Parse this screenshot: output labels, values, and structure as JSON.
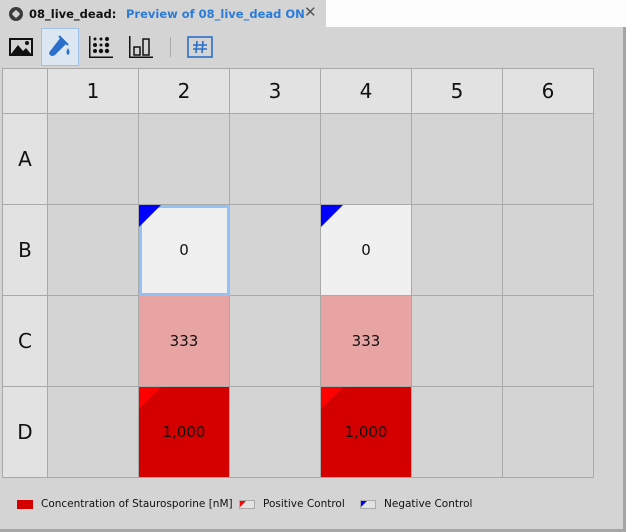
{
  "tab": {
    "title": "08_live_dead:",
    "subtitle": "Preview of 08_live_dead  ON",
    "close_glyph": "✕"
  },
  "toolbar": {
    "buttons": [
      {
        "name": "image-view",
        "icon": "image-icon",
        "active": false
      },
      {
        "name": "reagent-view",
        "icon": "pipette-drop-icon",
        "active": true
      },
      {
        "name": "dot-matrix-view",
        "icon": "dot-matrix-icon",
        "active": false
      },
      {
        "name": "bar-chart-view",
        "icon": "bar-chart-icon",
        "active": false
      },
      {
        "name": "grid-number-view",
        "icon": "hash-grid-icon",
        "active": false
      }
    ]
  },
  "plate": {
    "columns": [
      "1",
      "2",
      "3",
      "4",
      "5",
      "6"
    ],
    "rows": [
      "A",
      "B",
      "C",
      "D"
    ],
    "selected_well": "B2",
    "wells": [
      {
        "id": "B2",
        "row": 1,
        "col": 1,
        "value": "0",
        "color": "#f0f0f0",
        "control": "negative"
      },
      {
        "id": "B4",
        "row": 1,
        "col": 3,
        "value": "0",
        "color": "#f0f0f0",
        "control": "negative"
      },
      {
        "id": "C2",
        "row": 2,
        "col": 1,
        "value": "333",
        "color": "#e8a3a3",
        "control": null
      },
      {
        "id": "C4",
        "row": 2,
        "col": 3,
        "value": "333",
        "color": "#e8a3a3",
        "control": null
      },
      {
        "id": "D2",
        "row": 3,
        "col": 1,
        "value": "1,000",
        "color": "#d40000",
        "control": "positive"
      },
      {
        "id": "D4",
        "row": 3,
        "col": 3,
        "value": "1,000",
        "color": "#d40000",
        "control": "positive"
      }
    ]
  },
  "legend": {
    "concentration": "Concentration of Staurosporine [nM]",
    "positive": "Positive Control",
    "negative": "Negative Control"
  },
  "colors": {
    "positive_marker": "#ff0000",
    "negative_marker": "#0000ff",
    "concentration_high": "#d40000",
    "selection": "#93c0f5"
  }
}
